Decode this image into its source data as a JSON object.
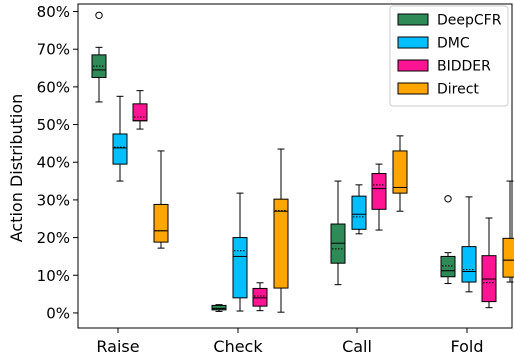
{
  "chart_data": {
    "type": "box",
    "title": "",
    "xlabel": "",
    "ylabel": "Action Distribution",
    "ylim": [
      -0.04,
      0.82
    ],
    "yticks": [
      0,
      0.1,
      0.2,
      0.3,
      0.4,
      0.5,
      0.6,
      0.7,
      0.8
    ],
    "ytick_labels": [
      "0%",
      "10%",
      "20%",
      "30%",
      "40%",
      "50%",
      "60%",
      "70%",
      "80%"
    ],
    "categories": [
      "Raise",
      "Check",
      "Call",
      "Fold"
    ],
    "legend_position": "top-right",
    "series": [
      {
        "name": "DeepCFR",
        "color": "#2e8b57",
        "boxes": [
          {
            "whislo": 0.56,
            "q1": 0.625,
            "med": 0.645,
            "mean": 0.655,
            "q3": 0.685,
            "whishi": 0.705,
            "fliers": [
              0.79
            ]
          },
          {
            "whislo": 0.004,
            "q1": 0.008,
            "med": 0.012,
            "mean": 0.011,
            "q3": 0.02,
            "whishi": 0.022,
            "fliers": []
          },
          {
            "whislo": 0.075,
            "q1": 0.132,
            "med": 0.185,
            "mean": 0.17,
            "q3": 0.236,
            "whishi": 0.35,
            "fliers": []
          },
          {
            "whislo": 0.078,
            "q1": 0.096,
            "med": 0.112,
            "mean": 0.125,
            "q3": 0.15,
            "whishi": 0.16,
            "fliers": [
              0.303
            ]
          }
        ]
      },
      {
        "name": "DMC",
        "color": "#00bfff",
        "boxes": [
          {
            "whislo": 0.35,
            "q1": 0.395,
            "med": 0.438,
            "mean": 0.44,
            "q3": 0.475,
            "whishi": 0.575,
            "fliers": []
          },
          {
            "whislo": 0.005,
            "q1": 0.04,
            "med": 0.15,
            "mean": 0.165,
            "q3": 0.2,
            "whishi": 0.318,
            "fliers": []
          },
          {
            "whislo": 0.21,
            "q1": 0.222,
            "med": 0.262,
            "mean": 0.255,
            "q3": 0.31,
            "whishi": 0.34,
            "fliers": []
          },
          {
            "whislo": 0.056,
            "q1": 0.082,
            "med": 0.11,
            "mean": 0.115,
            "q3": 0.176,
            "whishi": 0.308,
            "fliers": []
          }
        ]
      },
      {
        "name": "BIDDER",
        "color": "#ff1493",
        "boxes": [
          {
            "whislo": 0.488,
            "q1": 0.51,
            "med": 0.51,
            "mean": 0.52,
            "q3": 0.555,
            "whishi": 0.59,
            "fliers": []
          },
          {
            "whislo": 0.006,
            "q1": 0.018,
            "med": 0.04,
            "mean": 0.045,
            "q3": 0.065,
            "whishi": 0.08,
            "fliers": []
          },
          {
            "whislo": 0.22,
            "q1": 0.275,
            "med": 0.33,
            "mean": 0.34,
            "q3": 0.37,
            "whishi": 0.395,
            "fliers": []
          },
          {
            "whislo": 0.014,
            "q1": 0.03,
            "med": 0.09,
            "mean": 0.08,
            "q3": 0.152,
            "whishi": 0.252,
            "fliers": []
          }
        ]
      },
      {
        "name": "Direct",
        "color": "#ffa500",
        "boxes": [
          {
            "whislo": 0.172,
            "q1": 0.188,
            "med": 0.218,
            "mean": 0.218,
            "q3": 0.288,
            "whishi": 0.43,
            "fliers": []
          },
          {
            "whislo": 0.002,
            "q1": 0.066,
            "med": 0.27,
            "mean": 0.272,
            "q3": 0.302,
            "whishi": 0.435,
            "fliers": []
          },
          {
            "whislo": 0.27,
            "q1": 0.318,
            "med": 0.333,
            "mean": 0.333,
            "q3": 0.43,
            "whishi": 0.47,
            "fliers": []
          },
          {
            "whislo": 0.082,
            "q1": 0.095,
            "med": 0.14,
            "mean": 0.14,
            "q3": 0.198,
            "whishi": 0.35,
            "fliers": []
          }
        ]
      }
    ]
  }
}
